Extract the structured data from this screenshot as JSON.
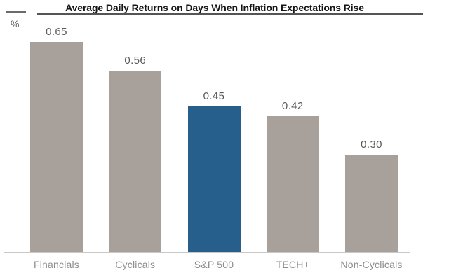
{
  "title": "Average Daily Returns on Days When Inflation Expectations Rise",
  "y_axis_unit": "%",
  "colors": {
    "bar_default": "#a8a19b",
    "bar_highlight": "#265e8c",
    "axis_line": "#c9c9c9",
    "title_text": "#141414",
    "value_label_text": "#595959",
    "category_label_text": "#8c8c8c"
  },
  "chart_data": {
    "type": "bar",
    "title": "Average Daily Returns on Days When Inflation Expectations Rise",
    "xlabel": "",
    "ylabel": "%",
    "categories": [
      "Financials",
      "Cyclicals",
      "S&P 500",
      "TECH+",
      "Non-Cyclicals"
    ],
    "values": [
      0.65,
      0.56,
      0.45,
      0.42,
      0.3
    ],
    "value_labels": [
      "0.65",
      "0.56",
      "0.45",
      "0.42",
      "0.30"
    ],
    "highlight_index": 2,
    "highlight_category": "S&P 500",
    "ylim": [
      0,
      0.7
    ],
    "grid": false,
    "legend": false,
    "y_axis_ticks_shown": false,
    "data_labels_position": "above-bar"
  }
}
